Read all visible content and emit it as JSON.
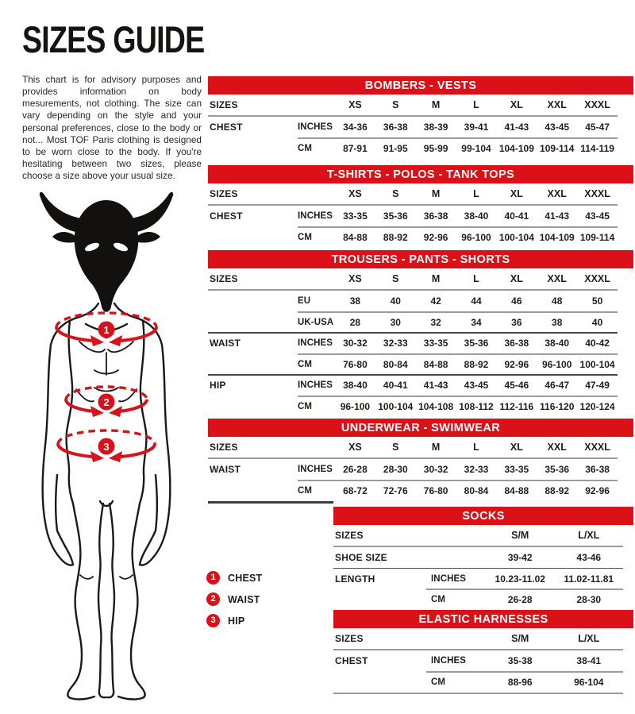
{
  "page": {
    "title": "SIZES GUIDE",
    "intro": "This chart is for advisory purposes and provides information on body mesurements, not clothing. The size can vary depending on the style and your personal preferences, close to the body or not... Most TOF Paris clothing is designed to be worn close to the body. If you're hesitating between two sizes, please choose a size above your usual size."
  },
  "colors": {
    "accent_red": "#DC1118",
    "text": "#1D1D1B",
    "rule_gray": "#9B9B9B",
    "rule_dark": "#3D3D3D"
  },
  "legend": [
    {
      "num": "1",
      "label": "CHEST"
    },
    {
      "num": "2",
      "label": "WAIST"
    },
    {
      "num": "3",
      "label": "HIP"
    }
  ],
  "figure": {
    "description": "minotaur-body-line-art",
    "markers": [
      "1",
      "2",
      "3"
    ]
  },
  "tables": [
    {
      "id": "bombers-vests",
      "title": "BOMBERS - VESTS",
      "sizes_label": "SIZES",
      "columns": [
        "XS",
        "S",
        "M",
        "L",
        "XL",
        "XXL",
        "XXXL"
      ],
      "groups": [
        {
          "label": "CHEST",
          "rows": [
            {
              "unit": "INCHES",
              "values": [
                "34-36",
                "36-38",
                "38-39",
                "39-41",
                "41-43",
                "43-45",
                "45-47"
              ]
            },
            {
              "unit": "CM",
              "values": [
                "87-91",
                "91-95",
                "95-99",
                "99-104",
                "104-109",
                "109-114",
                "114-119"
              ]
            }
          ]
        }
      ]
    },
    {
      "id": "tshirts-polos-tank-tops",
      "title": "T-SHIRTS - POLOS - TANK TOPS",
      "sizes_label": "SIZES",
      "columns": [
        "XS",
        "S",
        "M",
        "L",
        "XL",
        "XXL",
        "XXXL"
      ],
      "groups": [
        {
          "label": "CHEST",
          "rows": [
            {
              "unit": "INCHES",
              "values": [
                "33-35",
                "35-36",
                "36-38",
                "38-40",
                "40-41",
                "41-43",
                "43-45"
              ]
            },
            {
              "unit": "CM",
              "values": [
                "84-88",
                "88-92",
                "92-96",
                "96-100",
                "100-104",
                "104-109",
                "109-114"
              ]
            }
          ]
        }
      ]
    },
    {
      "id": "trousers-pants-shorts",
      "title": "TROUSERS - PANTS - SHORTS",
      "sizes_label": "SIZES",
      "columns": [
        "XS",
        "S",
        "M",
        "L",
        "XL",
        "XXL",
        "XXXL"
      ],
      "groups": [
        {
          "label": "",
          "rows": [
            {
              "unit": "EU",
              "values": [
                "38",
                "40",
                "42",
                "44",
                "46",
                "48",
                "50"
              ]
            },
            {
              "unit": "UK-USA",
              "values": [
                "28",
                "30",
                "32",
                "34",
                "36",
                "38",
                "40"
              ]
            }
          ]
        },
        {
          "label": "WAIST",
          "rows": [
            {
              "unit": "INCHES",
              "values": [
                "30-32",
                "32-33",
                "33-35",
                "35-36",
                "36-38",
                "38-40",
                "40-42"
              ]
            },
            {
              "unit": "CM",
              "values": [
                "76-80",
                "80-84",
                "84-88",
                "88-92",
                "92-96",
                "96-100",
                "100-104"
              ]
            }
          ]
        },
        {
          "label": "HIP",
          "rows": [
            {
              "unit": "INCHES",
              "values": [
                "38-40",
                "40-41",
                "41-43",
                "43-45",
                "45-46",
                "46-47",
                "47-49"
              ]
            },
            {
              "unit": "CM",
              "values": [
                "96-100",
                "100-104",
                "104-108",
                "108-112",
                "112-116",
                "116-120",
                "120-124"
              ]
            }
          ]
        }
      ]
    },
    {
      "id": "underwear-swimwear",
      "title": "UNDERWEAR - SWIMWEAR",
      "sizes_label": "SIZES",
      "columns": [
        "XS",
        "S",
        "M",
        "L",
        "XL",
        "XXL",
        "XXXL"
      ],
      "bottom_rule": "dark-partial",
      "groups": [
        {
          "label": "WAIST",
          "rows": [
            {
              "unit": "INCHES",
              "values": [
                "26-28",
                "28-30",
                "30-32",
                "32-33",
                "33-35",
                "35-36",
                "36-38"
              ]
            },
            {
              "unit": "CM",
              "values": [
                "68-72",
                "72-76",
                "76-80",
                "80-84",
                "84-88",
                "88-92",
                "92-96"
              ]
            }
          ]
        }
      ]
    },
    {
      "id": "socks",
      "title": "SOCKS",
      "sizes_label": "SIZES",
      "columns": [
        "S/M",
        "L/XL"
      ],
      "groups": [
        {
          "label": "SHOE SIZE",
          "rows": [
            {
              "unit": "",
              "values": [
                "39-42",
                "43-46"
              ]
            }
          ]
        },
        {
          "label": "LENGTH",
          "rows": [
            {
              "unit": "INCHES",
              "values": [
                "10.23-11.02",
                "11.02-11.81"
              ]
            },
            {
              "unit": "CM",
              "values": [
                "26-28",
                "28-30"
              ]
            }
          ]
        }
      ]
    },
    {
      "id": "elastic-harnesses",
      "title": "ELASTIC HARNESSES",
      "sizes_label": "SIZES",
      "columns": [
        "S/M",
        "L/XL"
      ],
      "bottom_rule": "gray",
      "groups": [
        {
          "label": "CHEST",
          "rows": [
            {
              "unit": "INCHES",
              "values": [
                "35-38",
                "38-41"
              ]
            },
            {
              "unit": "CM",
              "values": [
                "88-96",
                "96-104"
              ]
            }
          ]
        }
      ]
    }
  ]
}
